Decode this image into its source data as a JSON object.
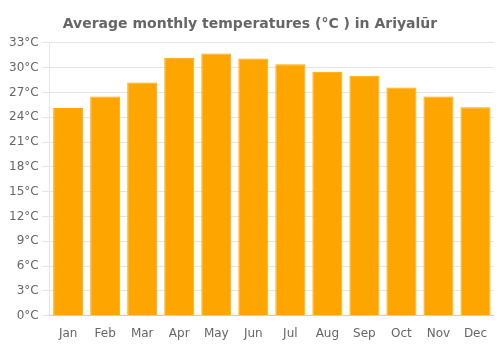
{
  "chart_data": {
    "type": "bar",
    "title": "Average monthly temperatures (°C ) in Ariyalūr",
    "categories": [
      "Jan",
      "Feb",
      "Mar",
      "Apr",
      "May",
      "Jun",
      "Jul",
      "Aug",
      "Sep",
      "Oct",
      "Nov",
      "Dec"
    ],
    "values": [
      25.1,
      26.5,
      28.2,
      31.2,
      31.7,
      31.1,
      30.4,
      29.5,
      29.0,
      27.6,
      26.5,
      25.2
    ],
    "color": "#FFA500",
    "ylim": [
      0,
      33
    ],
    "yticks": [
      {
        "value": 0,
        "label": "0°C"
      },
      {
        "value": 3,
        "label": "3°C"
      },
      {
        "value": 6,
        "label": "6°C"
      },
      {
        "value": 9,
        "label": "9°C"
      },
      {
        "value": 12,
        "label": "12°C"
      },
      {
        "value": 15,
        "label": "15°C"
      },
      {
        "value": 18,
        "label": "18°C"
      },
      {
        "value": 21,
        "label": "21°C"
      },
      {
        "value": 24,
        "label": "24°C"
      },
      {
        "value": 27,
        "label": "27°C"
      },
      {
        "value": 30,
        "label": "30°C"
      },
      {
        "value": 33,
        "label": "33°C"
      }
    ],
    "grid": true
  }
}
